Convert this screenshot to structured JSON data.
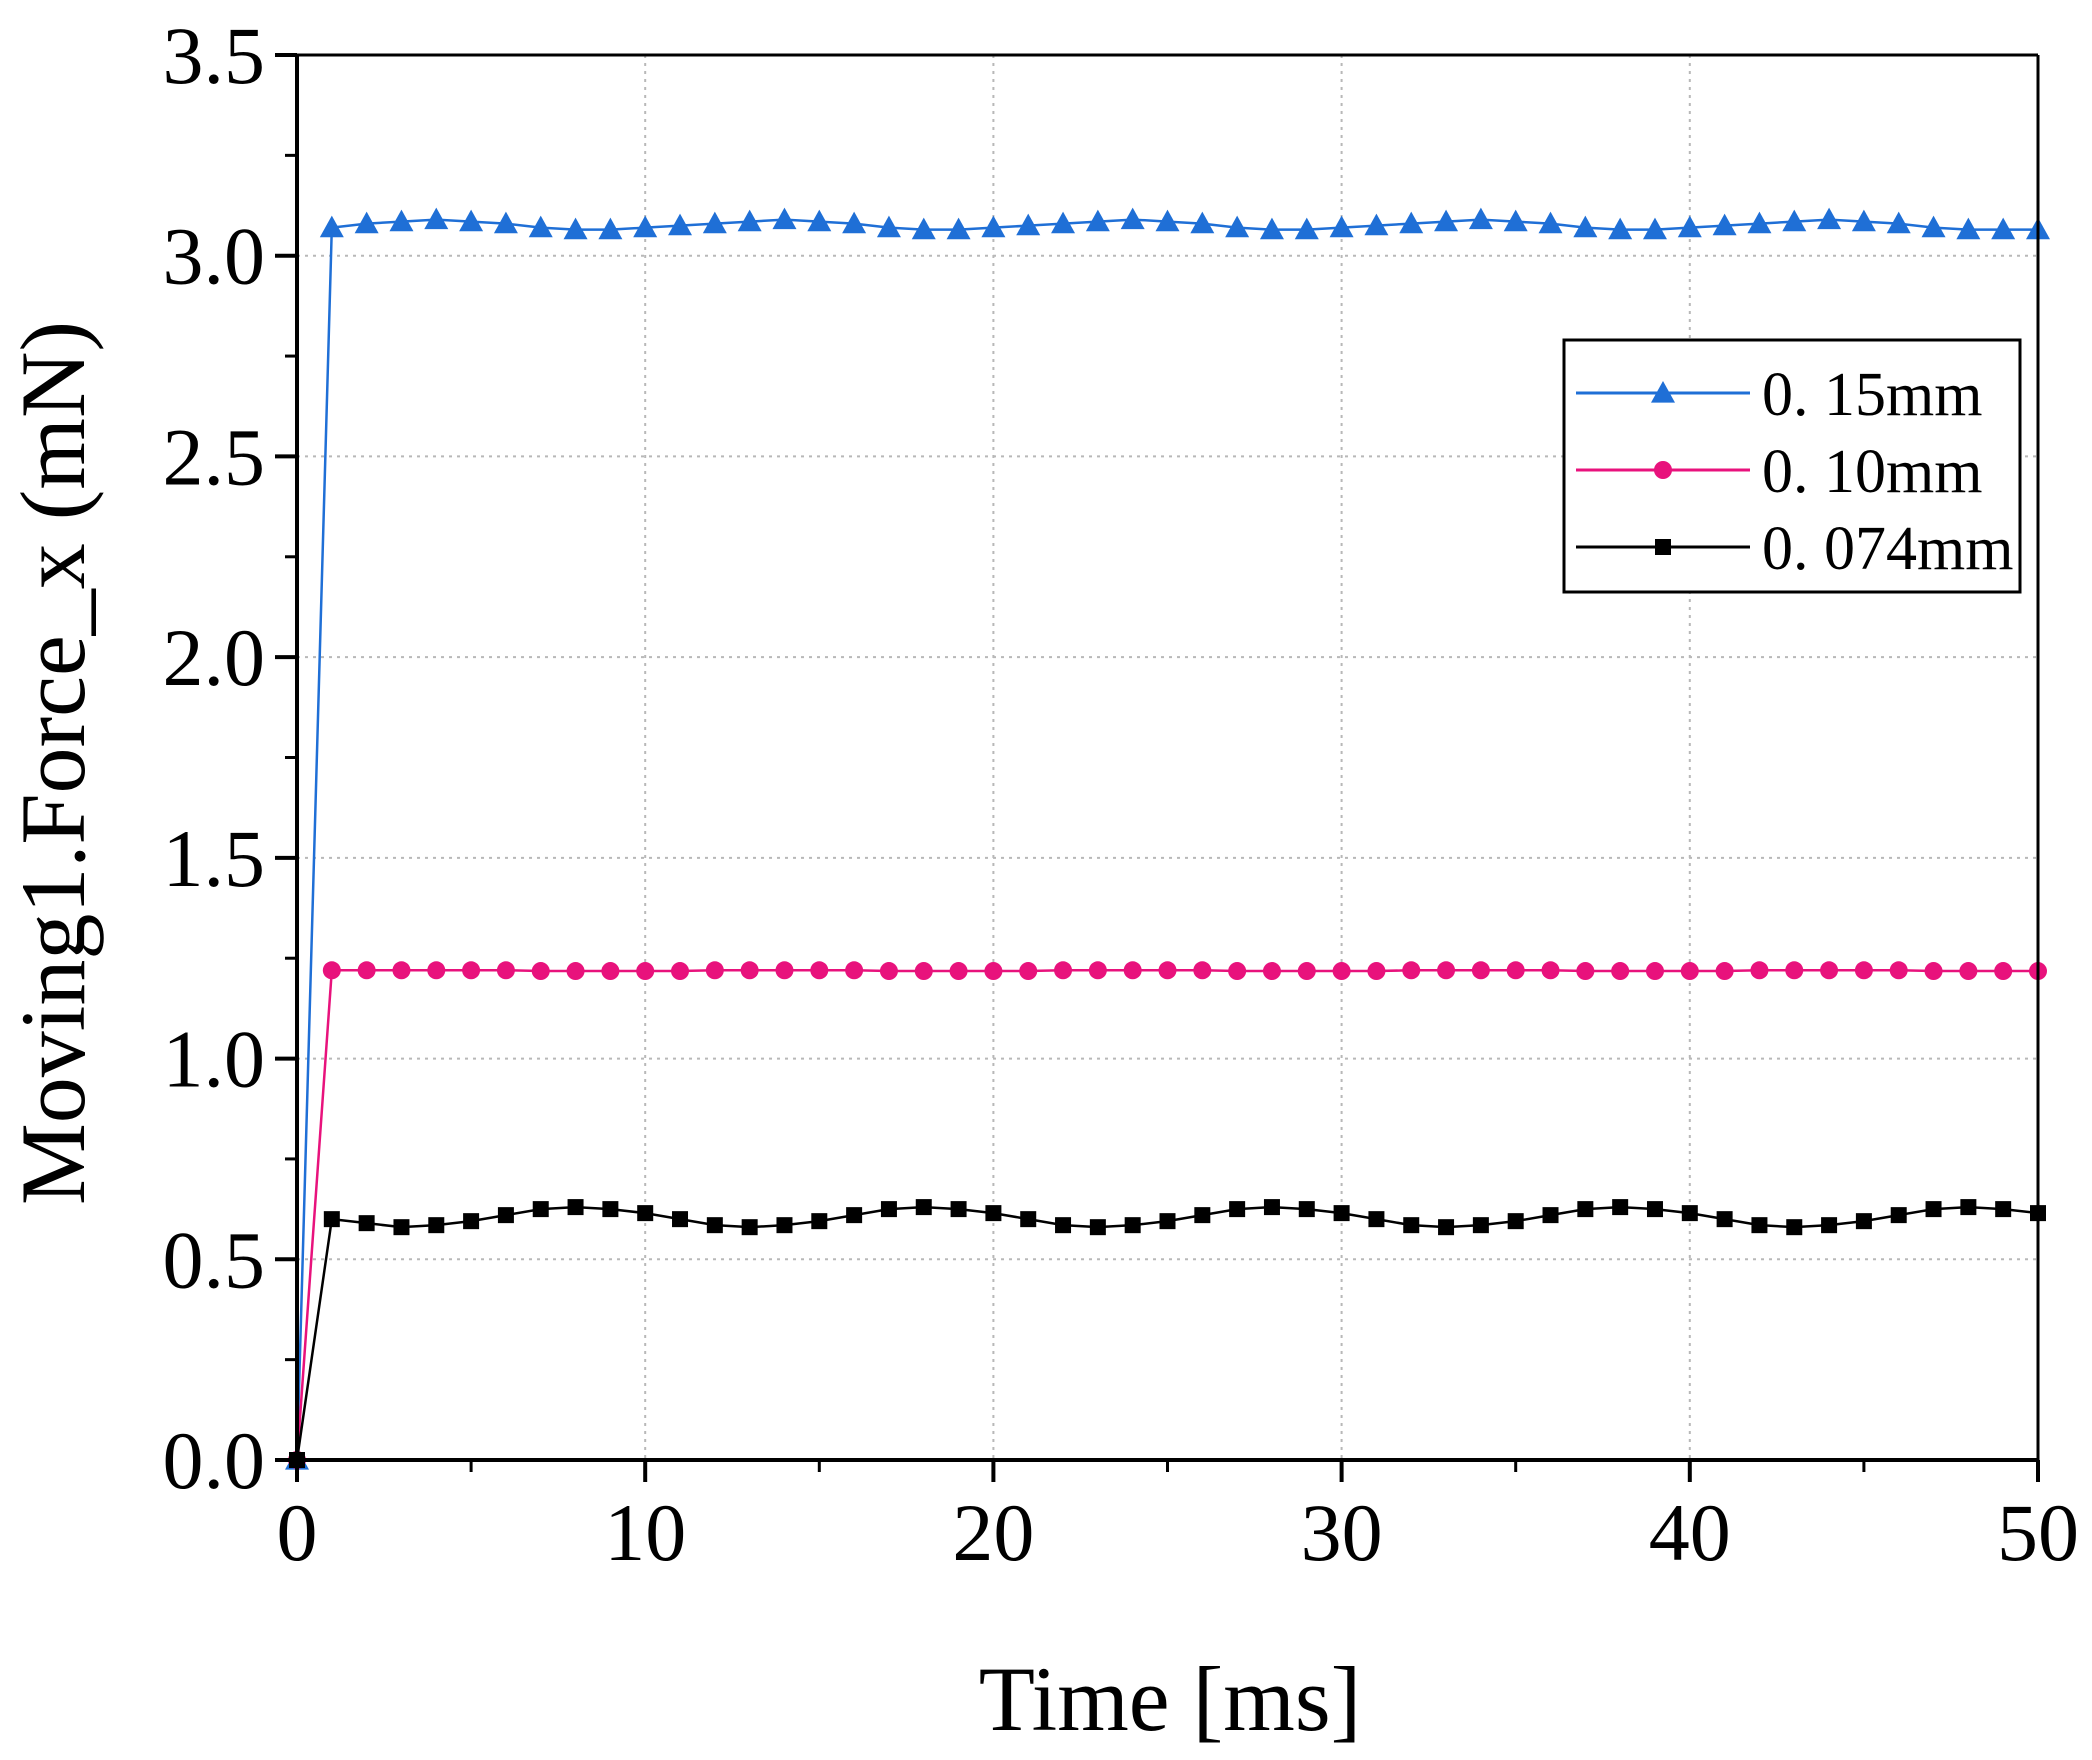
{
  "chart_data": {
    "type": "line",
    "title": "",
    "xlabel": "Time [ms]",
    "ylabel": "Moving1.Force_x (mN)",
    "xlim": [
      0,
      50
    ],
    "ylim": [
      0,
      3.5
    ],
    "x_ticks": [
      0,
      10,
      20,
      30,
      40,
      50
    ],
    "x_tick_labels": [
      "0",
      "10",
      "20",
      "30",
      "40",
      "50"
    ],
    "y_ticks": [
      0,
      0.5,
      1.0,
      1.5,
      2.0,
      2.5,
      3.0,
      3.5
    ],
    "y_tick_labels": [
      "0.0",
      "0.5",
      "1.0",
      "1.5",
      "2.0",
      "2.5",
      "3.0",
      "3.5"
    ],
    "grid": true,
    "legend_position": "upper-right",
    "x": [
      0,
      1,
      2,
      3,
      4,
      5,
      6,
      7,
      8,
      9,
      10,
      11,
      12,
      13,
      14,
      15,
      16,
      17,
      18,
      19,
      20,
      21,
      22,
      23,
      24,
      25,
      26,
      27,
      28,
      29,
      30,
      31,
      32,
      33,
      34,
      35,
      36,
      37,
      38,
      39,
      40,
      41,
      42,
      43,
      44,
      45,
      46,
      47,
      48,
      49,
      50
    ],
    "series": [
      {
        "name": "0. 15mm",
        "color": "#1f6fd6",
        "marker": "triangle",
        "values": [
          0,
          3.07,
          3.08,
          3.085,
          3.09,
          3.085,
          3.08,
          3.07,
          3.065,
          3.065,
          3.07,
          3.075,
          3.08,
          3.085,
          3.09,
          3.085,
          3.08,
          3.07,
          3.065,
          3.065,
          3.07,
          3.075,
          3.08,
          3.085,
          3.09,
          3.085,
          3.08,
          3.07,
          3.065,
          3.065,
          3.07,
          3.075,
          3.08,
          3.085,
          3.09,
          3.085,
          3.08,
          3.07,
          3.065,
          3.065,
          3.07,
          3.075,
          3.08,
          3.085,
          3.09,
          3.085,
          3.08,
          3.07,
          3.065,
          3.065,
          3.065
        ]
      },
      {
        "name": "0. 10mm",
        "color": "#e8127c",
        "marker": "circle",
        "values": [
          0,
          1.22,
          1.22,
          1.22,
          1.22,
          1.22,
          1.22,
          1.218,
          1.218,
          1.218,
          1.218,
          1.218,
          1.22,
          1.22,
          1.22,
          1.22,
          1.22,
          1.218,
          1.218,
          1.218,
          1.218,
          1.218,
          1.22,
          1.22,
          1.22,
          1.22,
          1.22,
          1.218,
          1.218,
          1.218,
          1.218,
          1.218,
          1.22,
          1.22,
          1.22,
          1.22,
          1.22,
          1.218,
          1.218,
          1.218,
          1.218,
          1.218,
          1.22,
          1.22,
          1.22,
          1.22,
          1.22,
          1.218,
          1.218,
          1.218,
          1.218
        ]
      },
      {
        "name": "0. 074mm",
        "color": "#000000",
        "marker": "square",
        "values": [
          0,
          0.6,
          0.59,
          0.58,
          0.585,
          0.595,
          0.61,
          0.625,
          0.63,
          0.625,
          0.615,
          0.6,
          0.585,
          0.58,
          0.585,
          0.595,
          0.61,
          0.625,
          0.63,
          0.625,
          0.615,
          0.6,
          0.585,
          0.58,
          0.585,
          0.595,
          0.61,
          0.625,
          0.63,
          0.625,
          0.615,
          0.6,
          0.585,
          0.58,
          0.585,
          0.595,
          0.61,
          0.625,
          0.63,
          0.625,
          0.615,
          0.6,
          0.585,
          0.58,
          0.585,
          0.595,
          0.61,
          0.625,
          0.63,
          0.625,
          0.615
        ]
      }
    ]
  }
}
